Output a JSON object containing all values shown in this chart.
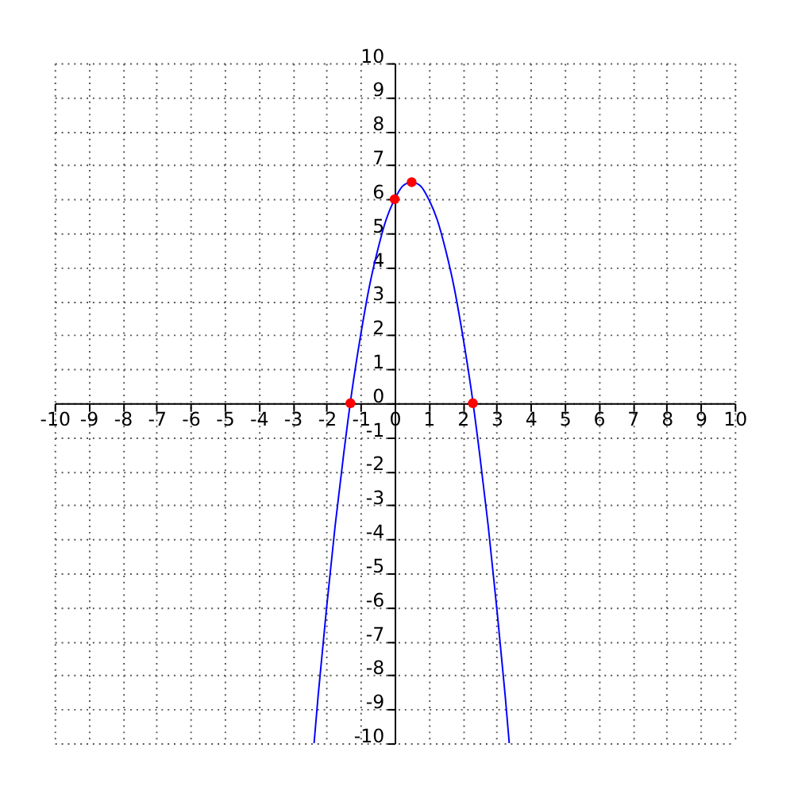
{
  "chart_data": {
    "type": "line",
    "xlim": [
      -10,
      10
    ],
    "ylim": [
      -10,
      10
    ],
    "xticks": [
      -10,
      -9,
      -8,
      -7,
      -6,
      -5,
      -4,
      -3,
      -2,
      -1,
      0,
      1,
      2,
      3,
      4,
      5,
      6,
      7,
      8,
      9,
      10
    ],
    "yticks": [
      -10,
      -9,
      -8,
      -7,
      -6,
      -5,
      -4,
      -3,
      -2,
      -1,
      0,
      1,
      2,
      3,
      4,
      5,
      6,
      7,
      8,
      9,
      10
    ],
    "grid": true,
    "series": [
      {
        "type": "line",
        "color": "#0000ff",
        "marker": "none",
        "line_style": "solid",
        "x": [
          -2.37,
          -2.25,
          -2,
          -1.75,
          -1.5,
          -1.25,
          -1,
          -0.75,
          -0.5,
          -0.25,
          0,
          0.25,
          0.5,
          0.75,
          1,
          1.25,
          1.5,
          1.75,
          2,
          2.25,
          2.5,
          2.75,
          3,
          3.25,
          3.37
        ],
        "values": [
          -10,
          -8.6,
          -6,
          -3.6,
          -1.5,
          0.4,
          2,
          3.4,
          4.5,
          5.4,
          6,
          6.4,
          6.5,
          6.4,
          6,
          5.4,
          4.5,
          3.4,
          2,
          0.4,
          -1.5,
          -3.6,
          -6,
          -8.6,
          -10
        ]
      },
      {
        "type": "scatter",
        "color": "#ff0000",
        "marker": "circle",
        "x": [
          -1.3,
          0,
          0.5,
          2.3
        ],
        "values": [
          0,
          6,
          6.5,
          0
        ]
      }
    ]
  }
}
